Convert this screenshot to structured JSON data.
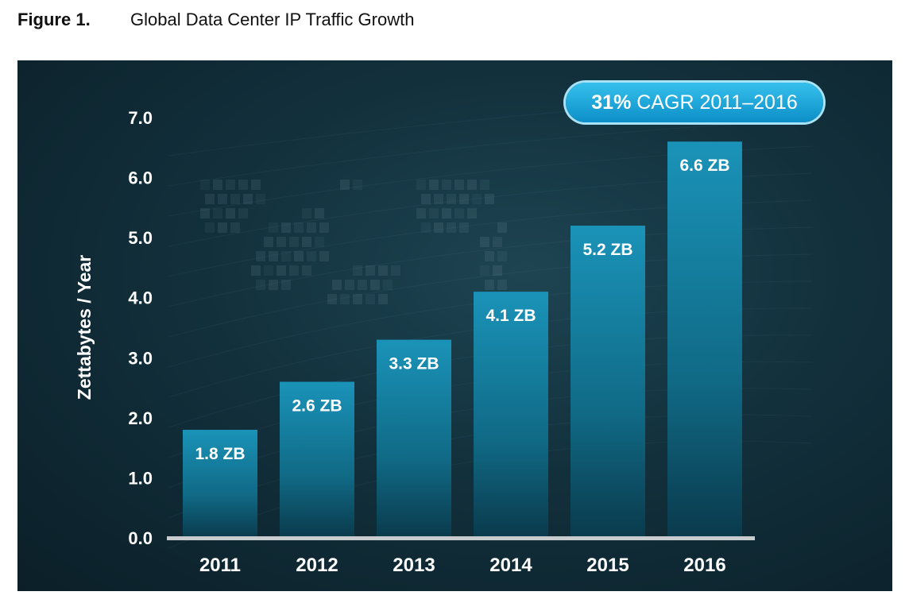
{
  "caption": {
    "label": "Figure 1.",
    "title": "Global Data Center IP Traffic Growth"
  },
  "badge": {
    "percent": "31%",
    "text": "CAGR 2011–2016"
  },
  "colors": {
    "panel_bg": "#12303c",
    "bar_top": "#1a93b8",
    "bar_bottom": "#0a3a4c",
    "badge": "#1aa7dc",
    "text": "#ffffff",
    "baseline": "#c8ccce"
  },
  "chart_data": {
    "type": "bar",
    "title": "",
    "xlabel": "",
    "ylabel": "Zettabytes / Year",
    "categories": [
      "2011",
      "2012",
      "2013",
      "2014",
      "2015",
      "2016"
    ],
    "values": [
      1.8,
      2.6,
      3.3,
      4.1,
      5.2,
      6.6
    ],
    "data_labels": [
      "1.8 ZB",
      "2.6 ZB",
      "3.3 ZB",
      "4.1 ZB",
      "5.2 ZB",
      "6.6 ZB"
    ],
    "y_ticks": [
      "0.0",
      "1.0",
      "2.0",
      "3.0",
      "4.0",
      "5.0",
      "6.0",
      "7.0"
    ],
    "ylim": [
      0,
      7
    ],
    "grid": false,
    "legend": "none"
  }
}
